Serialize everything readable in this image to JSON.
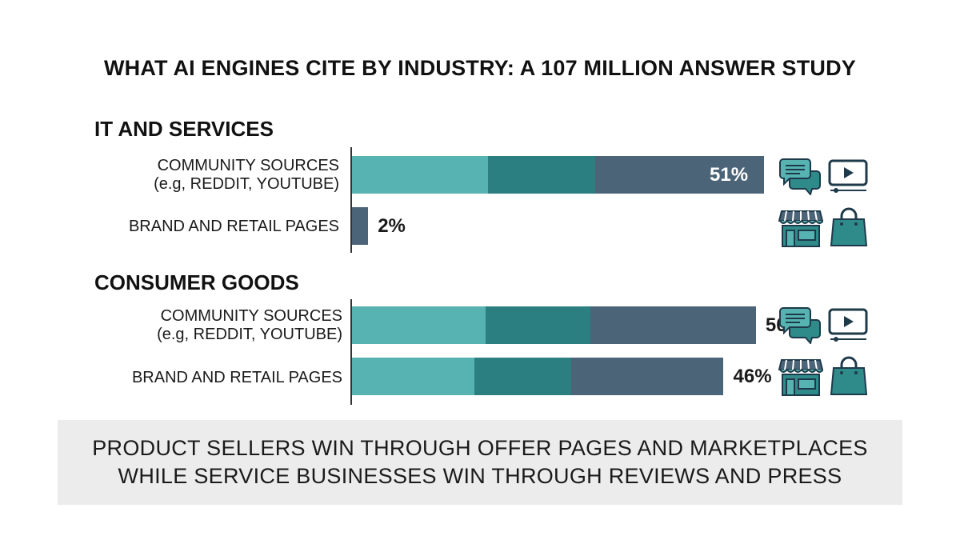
{
  "title": "WHAT AI ENGINES CITE BY INDUSTRY: A 107 MILLION ANSWER STUDY",
  "colors": {
    "segment_light": "#56b3b1",
    "segment_mid": "#2b7f80",
    "segment_dark": "#4c6478",
    "icon_teal": "#2f8b8a",
    "icon_stroke": "#1e3a4a",
    "footer_bg": "#ececec"
  },
  "chart_data": {
    "type": "bar",
    "orientation": "horizontal",
    "stacked_visual": true,
    "xlim": [
      0,
      51
    ],
    "groups": [
      {
        "name": "IT AND SERVICES",
        "rows": [
          {
            "label_line1": "COMMUNITY SOURCES",
            "label_line2": "(e.g, REDDIT, YOUTUBE)",
            "value": 51,
            "value_label": "51%",
            "label_inside": true,
            "icons": [
              "chat-bubbles-icon",
              "video-player-icon"
            ]
          },
          {
            "label_line1": "BRAND AND RETAIL PAGES",
            "label_line2": "",
            "value": 2,
            "value_label": "2%",
            "label_inside": false,
            "icons": [
              "storefront-icon",
              "shopping-bag-icon"
            ]
          }
        ]
      },
      {
        "name": "CONSUMER GOODS",
        "rows": [
          {
            "label_line1": "COMMUNITY SOURCES",
            "label_line2": "(e.g, REDDIT, YOUTUBE)",
            "value": 50,
            "value_label": "50%",
            "label_inside": false,
            "icons": [
              "chat-bubbles-icon",
              "video-player-icon"
            ]
          },
          {
            "label_line1": "BRAND AND RETAIL PAGES",
            "label_line2": "",
            "value": 46,
            "value_label": "46%",
            "label_inside": false,
            "icons": [
              "storefront-icon",
              "shopping-bag-icon"
            ]
          }
        ]
      }
    ]
  },
  "footer": {
    "line1": "PRODUCT SELLERS WIN THROUGH OFFER PAGES AND MARKETPLACES",
    "line2": "WHILE SERVICE BUSINESSES WIN THROUGH REVIEWS AND PRESS"
  }
}
